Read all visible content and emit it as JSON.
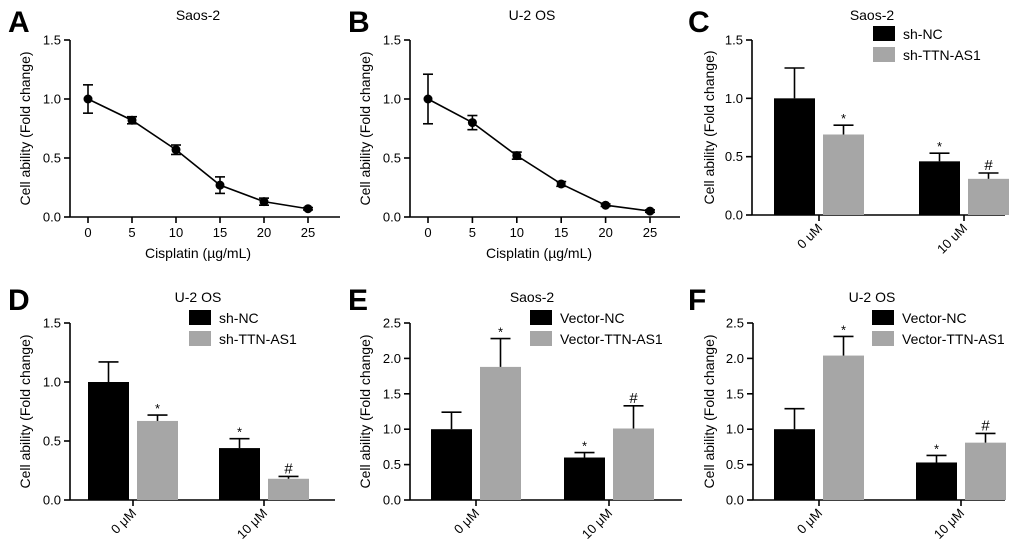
{
  "colors": {
    "black_bar": "#000000",
    "gray_bar": "#a6a6a6",
    "axis": "#000000"
  },
  "chart_data": [
    {
      "panel": "A",
      "type": "line",
      "title": "Saos-2",
      "xlabel": "Cisplatin (µg/mL)",
      "ylabel": "Cell ability (Fold change)",
      "x": [
        0,
        5,
        10,
        15,
        20,
        25
      ],
      "x_ticks": [
        "0",
        "5",
        "10",
        "15",
        "20",
        "25"
      ],
      "y": [
        1.0,
        0.82,
        0.57,
        0.27,
        0.13,
        0.07
      ],
      "err": [
        0.12,
        0.03,
        0.04,
        0.07,
        0.03,
        0.01
      ],
      "ylim": [
        0,
        1.5
      ],
      "y_ticks": [
        "0.0",
        "0.5",
        "1.0",
        "1.5"
      ]
    },
    {
      "panel": "B",
      "type": "line",
      "title": "U-2 OS",
      "xlabel": "Cisplatin (µg/mL)",
      "ylabel": "Cell ability (Fold change)",
      "x": [
        0,
        5,
        10,
        15,
        20,
        25
      ],
      "x_ticks": [
        "0",
        "5",
        "10",
        "15",
        "20",
        "25"
      ],
      "y": [
        1.0,
        0.8,
        0.52,
        0.28,
        0.1,
        0.05
      ],
      "err": [
        0.21,
        0.06,
        0.03,
        0.02,
        0.01,
        0.01
      ],
      "ylim": [
        0,
        1.5
      ],
      "y_ticks": [
        "0.0",
        "0.5",
        "1.0",
        "1.5"
      ]
    },
    {
      "panel": "C",
      "type": "bar",
      "title": "Saos-2",
      "ylabel": "Cell ability (Fold change)",
      "categories": [
        "0 uM",
        "10 uM"
      ],
      "series": [
        {
          "name": "sh-NC",
          "values": [
            1.0,
            0.46
          ],
          "err": [
            0.26,
            0.07
          ],
          "marks": [
            "",
            "*"
          ]
        },
        {
          "name": "sh-TTN-AS1",
          "values": [
            0.69,
            0.31
          ],
          "err": [
            0.08,
            0.05
          ],
          "marks": [
            "*",
            "#"
          ]
        }
      ],
      "ylim": [
        0,
        1.5
      ],
      "y_ticks": [
        "0.0",
        "0.5",
        "1.0",
        "1.5"
      ],
      "legend": "top-right"
    },
    {
      "panel": "D",
      "type": "bar",
      "title": "U-2 OS",
      "ylabel": "Cell ability (Fold change)",
      "categories": [
        "0 μM",
        "10 μM"
      ],
      "series": [
        {
          "name": "sh-NC",
          "values": [
            1.0,
            0.44
          ],
          "err": [
            0.17,
            0.08
          ],
          "marks": [
            "",
            "*"
          ]
        },
        {
          "name": "sh-TTN-AS1",
          "values": [
            0.67,
            0.18
          ],
          "err": [
            0.05,
            0.02
          ],
          "marks": [
            "*",
            "#"
          ]
        }
      ],
      "ylim": [
        0,
        1.5
      ],
      "y_ticks": [
        "0.0",
        "0.5",
        "1.0",
        "1.5"
      ],
      "legend": "top-right"
    },
    {
      "panel": "E",
      "type": "bar",
      "title": "Saos-2",
      "ylabel": "Cell ability (Fold change)",
      "categories": [
        "0 μM",
        "10 μM"
      ],
      "series": [
        {
          "name": "Vector-NC",
          "values": [
            1.0,
            0.6
          ],
          "err": [
            0.24,
            0.07
          ],
          "marks": [
            "",
            "*"
          ]
        },
        {
          "name": "Vector-TTN-AS1",
          "values": [
            1.88,
            1.01
          ],
          "err": [
            0.4,
            0.32
          ],
          "marks": [
            "*",
            "#"
          ]
        }
      ],
      "ylim": [
        0,
        2.5
      ],
      "y_ticks": [
        "0.0",
        "0.5",
        "1.0",
        "1.5",
        "2.0",
        "2.5"
      ],
      "legend": "top-right"
    },
    {
      "panel": "F",
      "type": "bar",
      "title": "U-2 OS",
      "ylabel": "Cell ability (Fold change)",
      "categories": [
        "0 μM",
        "10 μM"
      ],
      "series": [
        {
          "name": "Vector-NC",
          "values": [
            1.0,
            0.53
          ],
          "err": [
            0.29,
            0.1
          ],
          "marks": [
            "",
            "*"
          ]
        },
        {
          "name": "Vector-TTN-AS1",
          "values": [
            2.04,
            0.81
          ],
          "err": [
            0.27,
            0.13
          ],
          "marks": [
            "*",
            "#"
          ]
        }
      ],
      "ylim": [
        0,
        2.5
      ],
      "y_ticks": [
        "0.0",
        "0.5",
        "1.0",
        "1.5",
        "2.0",
        "2.5"
      ],
      "legend": "top-right"
    }
  ]
}
